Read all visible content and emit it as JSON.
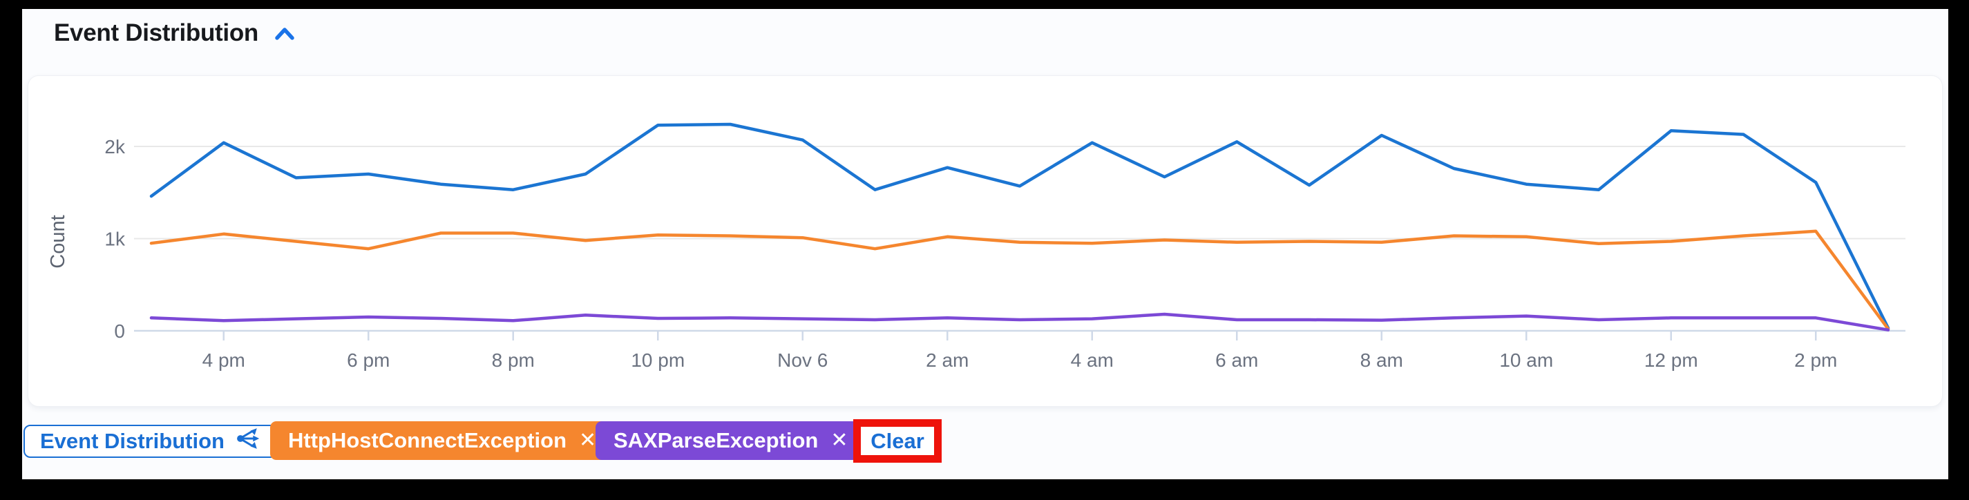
{
  "header": {
    "title": "Event Distribution",
    "collapse_icon": "chevron-up",
    "accent_color": "#1a73e8"
  },
  "chart_data": {
    "type": "line",
    "title": "Event Distribution",
    "ylabel": "Count",
    "y_tick_labels": [
      "0",
      "1k",
      "2k"
    ],
    "ylim": [
      0,
      2500
    ],
    "grid": "horizontal-only",
    "legend_position": "none",
    "x_tick_labels": [
      "4 pm",
      "6 pm",
      "8 pm",
      "10 pm",
      "Nov 6",
      "2 am",
      "4 am",
      "6 am",
      "8 am",
      "10 am",
      "12 pm",
      "2 pm"
    ],
    "x_description": "hourly points from 3 pm Nov 5 through 3 pm Nov 6, ticks every 2 hours",
    "series": [
      {
        "name": "Event Distribution",
        "color": "#1b75d2",
        "values": [
          1460,
          2040,
          1660,
          1700,
          1590,
          1530,
          1700,
          2230,
          2240,
          2070,
          1530,
          1770,
          1570,
          2040,
          1670,
          2050,
          1580,
          2120,
          1760,
          1590,
          1530,
          2170,
          2130,
          1610,
          30
        ]
      },
      {
        "name": "HttpHostConnectException",
        "color": "#f5862e",
        "values": [
          950,
          1050,
          970,
          890,
          1060,
          1060,
          980,
          1040,
          1030,
          1010,
          890,
          1020,
          960,
          950,
          985,
          960,
          970,
          960,
          1030,
          1020,
          945,
          970,
          1030,
          1080,
          20
        ]
      },
      {
        "name": "SAXParseException",
        "color": "#7c49d6",
        "values": [
          140,
          110,
          130,
          150,
          135,
          110,
          170,
          135,
          140,
          130,
          120,
          140,
          120,
          130,
          180,
          120,
          120,
          115,
          140,
          160,
          120,
          140,
          140,
          140,
          10
        ]
      }
    ],
    "axis_colors": {
      "axis_line": "#cfd9e8",
      "gridline": "#e8e8e8",
      "tick_label": "#6b7280",
      "y_label": "#5c6370"
    }
  },
  "filter_bar": {
    "share_chip": {
      "label": "Event Distribution",
      "icon": "share"
    },
    "chips": [
      {
        "label": "HttpHostConnectException",
        "remove_icon": "✕",
        "color": "#f5862e"
      },
      {
        "label": "SAXParseException",
        "remove_icon": "✕",
        "color": "#7c49d6"
      }
    ],
    "clear_label": "Clear"
  },
  "annotation": {
    "type": "highlight-box",
    "target": "Clear",
    "color": "#ee130b"
  }
}
